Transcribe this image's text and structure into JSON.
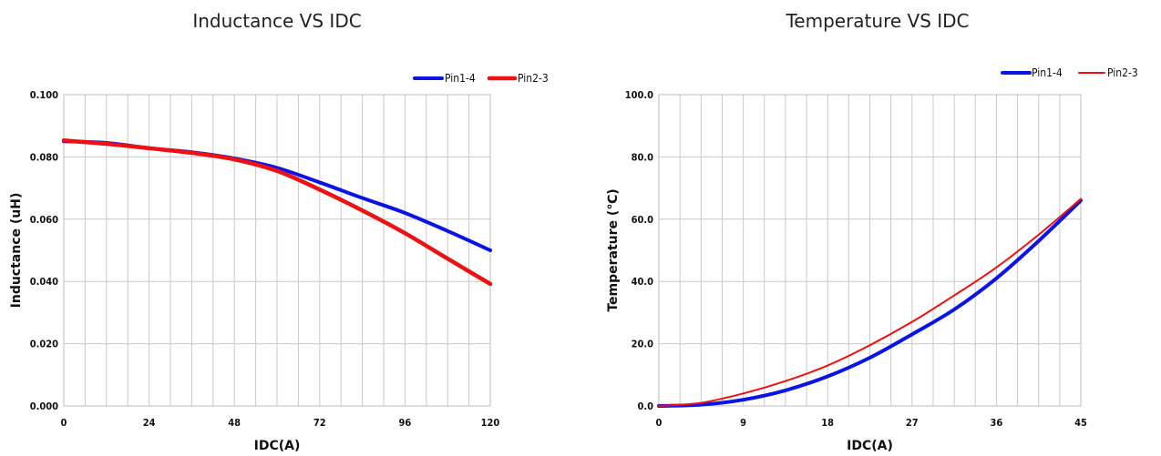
{
  "chart_data": [
    {
      "type": "line",
      "title": "Inductance VS IDC",
      "xlabel": "IDC(A)",
      "ylabel": "Inductance  (uH)",
      "xlim": [
        0,
        120
      ],
      "ylim": [
        0,
        0.1
      ],
      "x_ticks": [
        0,
        24,
        48,
        72,
        96,
        120
      ],
      "x_tick_labels": [
        "0",
        "24",
        "48",
        "72",
        "96",
        "120"
      ],
      "y_ticks": [
        0,
        0.02,
        0.04,
        0.06,
        0.08,
        0.1
      ],
      "y_tick_labels": [
        "0.000",
        "0.020",
        "0.040",
        "0.060",
        "0.080",
        "0.100"
      ],
      "x_grid_step": 6,
      "grid": true,
      "legend_position": "top-right",
      "series": [
        {
          "name": "Pin1-4",
          "color": "#0a14e6",
          "x": [
            0,
            12,
            24,
            36,
            48,
            60,
            72,
            84,
            96,
            108,
            120
          ],
          "y": [
            0.085,
            0.0845,
            0.0828,
            0.0815,
            0.0795,
            0.0765,
            0.0718,
            0.0668,
            0.062,
            0.0562,
            0.05
          ]
        },
        {
          "name": "Pin2-3",
          "color": "#ee1111",
          "x": [
            0,
            12,
            24,
            36,
            48,
            60,
            72,
            84,
            96,
            108,
            120
          ],
          "y": [
            0.0853,
            0.0842,
            0.0828,
            0.0813,
            0.0792,
            0.0755,
            0.0695,
            0.0628,
            0.0555,
            0.0473,
            0.0392
          ]
        }
      ]
    },
    {
      "type": "line",
      "title": "Temperature VS IDC",
      "xlabel": "IDC(A)",
      "ylabel": "Temperature (℃)",
      "xlim": [
        0,
        45
      ],
      "ylim": [
        0,
        100
      ],
      "x_ticks": [
        0,
        9,
        18,
        27,
        36,
        45
      ],
      "x_tick_labels": [
        "0",
        "9",
        "18",
        "27",
        "36",
        "45"
      ],
      "y_ticks": [
        0,
        20,
        40,
        60,
        80,
        100
      ],
      "y_tick_labels": [
        "0.0",
        "20.0",
        "40.0",
        "60.0",
        "80.0",
        "100.0"
      ],
      "x_grid_step": 2.25,
      "grid": true,
      "legend_position": "top-right",
      "series": [
        {
          "name": "Pin1-4",
          "color": "#0a14e6",
          "x": [
            0,
            4.5,
            9,
            13.5,
            18,
            22.5,
            27,
            31.5,
            36,
            40.5,
            45
          ],
          "y": [
            0,
            0.4,
            2.0,
            5.0,
            9.5,
            15.5,
            23,
            31,
            41,
            53,
            66
          ]
        },
        {
          "name": "Pin2-3",
          "color": "#ee1111",
          "x": [
            0,
            4.5,
            9,
            13.5,
            18,
            22.5,
            27,
            31.5,
            36,
            40.5,
            45
          ],
          "y": [
            0,
            1.0,
            4.0,
            8.0,
            13,
            19.5,
            27,
            35.5,
            44.5,
            55,
            66.5
          ]
        }
      ]
    }
  ]
}
